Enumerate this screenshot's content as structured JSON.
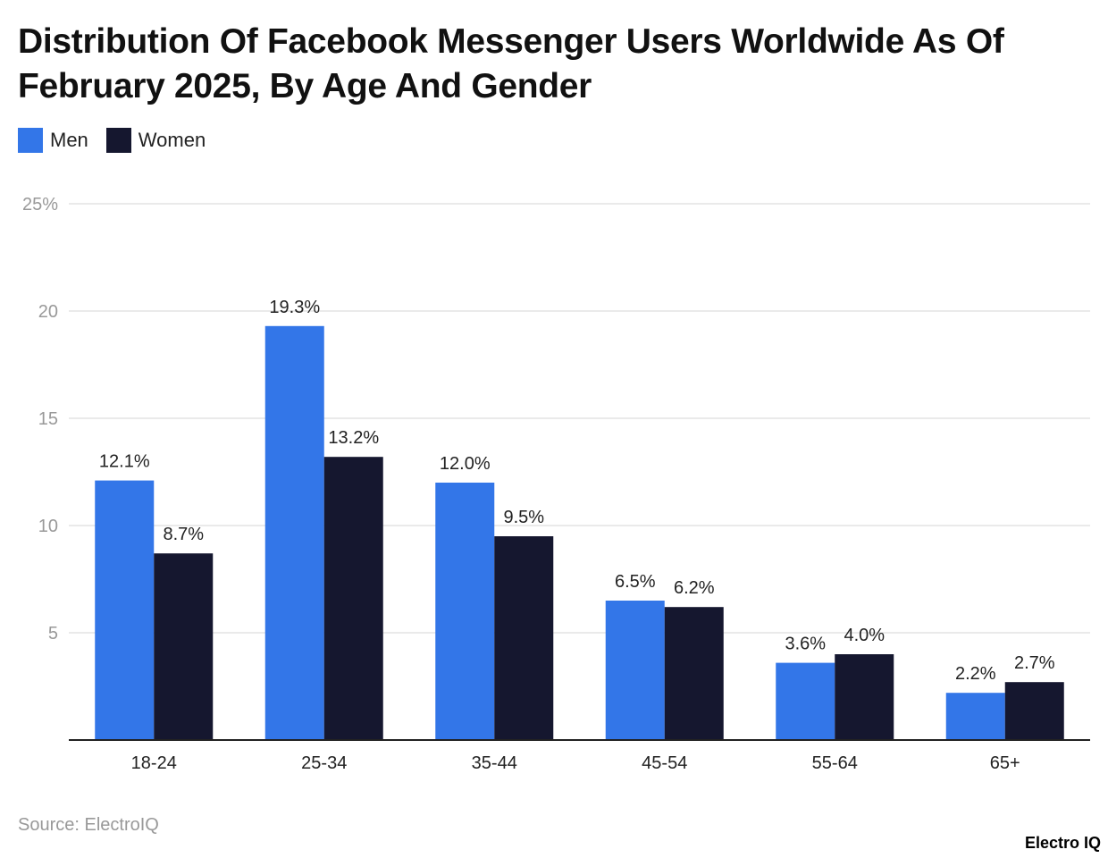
{
  "chart_data": {
    "type": "bar",
    "title": "Distribution Of Facebook Messenger Users Worldwide As Of February 2025, By Age And Gender",
    "categories": [
      "18-24",
      "25-34",
      "35-44",
      "45-54",
      "55-64",
      "65+"
    ],
    "series": [
      {
        "name": "Men",
        "color": "#3376e8",
        "values": [
          12.1,
          19.3,
          12.0,
          6.5,
          3.6,
          2.2
        ],
        "labels": [
          "12.1%",
          "19.3%",
          "12.0%",
          "6.5%",
          "3.6%",
          "2.2%"
        ]
      },
      {
        "name": "Women",
        "color": "#15172f",
        "values": [
          8.7,
          13.2,
          9.5,
          6.2,
          4.0,
          2.7
        ],
        "labels": [
          "8.7%",
          "13.2%",
          "9.5%",
          "6.2%",
          "4.0%",
          "2.7%"
        ]
      }
    ],
    "ylim": [
      0,
      25
    ],
    "yticks": [
      5,
      10,
      15,
      20,
      25
    ],
    "ytick_labels": [
      "5",
      "10",
      "15",
      "20",
      "25%"
    ],
    "grid": true,
    "legend_position": "top-left",
    "xlabel": "",
    "ylabel": ""
  },
  "source": "Source: ElectroIQ",
  "logo": "Electro IQ"
}
